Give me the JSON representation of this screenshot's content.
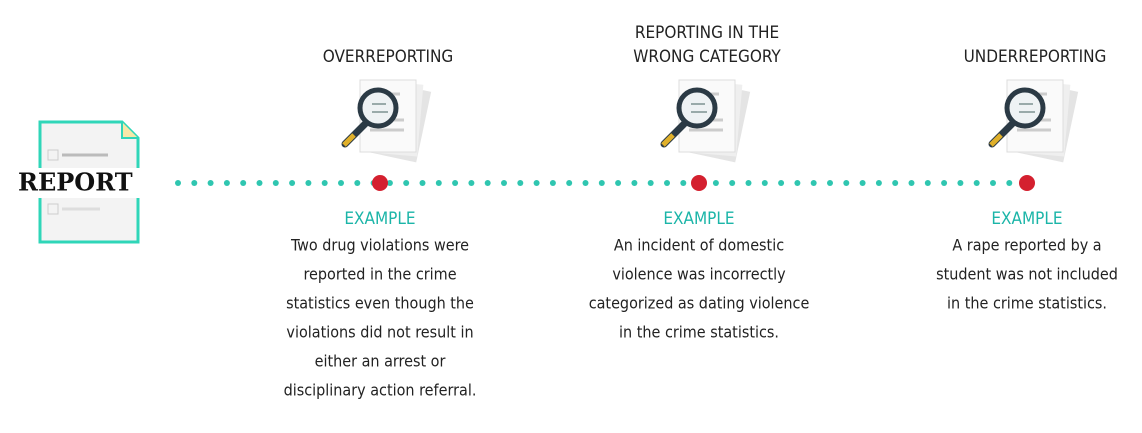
{
  "report_label": "REPORT",
  "columns": [
    {
      "title": [
        "OVERREPORTING"
      ],
      "example": "EXAMPLE",
      "description": [
        "Two drug violations were",
        "reported in the crime",
        "statistics even though the",
        "violations did not result in",
        "either an arrest or",
        "disciplinary action referral."
      ]
    },
    {
      "title": [
        "REPORTING IN THE",
        "WRONG CATEGORY"
      ],
      "example": "EXAMPLE",
      "description": [
        "An incident of domestic",
        "violence was incorrectly",
        "categorized as dating violence",
        "in the crime statistics."
      ]
    },
    {
      "title": [
        "UNDERREPORTING"
      ],
      "example": "EXAMPLE",
      "description": [
        "A rape reported by a",
        "student was not included",
        "in the crime statistics."
      ]
    }
  ]
}
